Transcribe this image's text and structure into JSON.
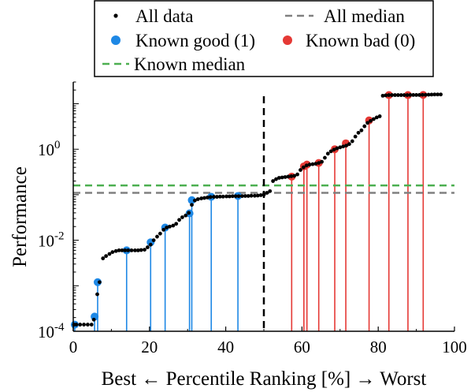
{
  "chart_data": {
    "type": "scatter",
    "xlabel": "Best ← Percentile Ranking [%] → Worst",
    "ylabel": "Performance",
    "xlim": [
      0,
      100
    ],
    "ylim": [
      0.0001,
      30
    ],
    "y_scale": "log",
    "x_ticks": [
      0,
      20,
      40,
      60,
      80,
      100
    ],
    "x_tick_labels": [
      "0",
      "20",
      "40",
      "60",
      "80",
      "100"
    ],
    "y_ticks": [
      0.0001,
      0.01,
      1
    ],
    "y_tick_labels": [
      {
        "base": "10",
        "exp": "-4"
      },
      {
        "base": "10",
        "exp": "-2"
      },
      {
        "base": "10",
        "exp": "0"
      }
    ],
    "grid": false,
    "legend_position": "top",
    "legend": {
      "all_data": "All data",
      "all_median": "All median",
      "known_good": "Known good (1)",
      "known_bad": "Known bad (0)",
      "known_median": "Known median"
    },
    "vertical_line_x": 50,
    "all_median_y": 0.11,
    "known_median_y": 0.16,
    "colors": {
      "all_data": "#000000",
      "known_good": "#1e88e5",
      "known_bad": "#e53935",
      "all_median": "#808080",
      "known_median": "#4caf50",
      "vertical_line": "#000000"
    },
    "all_data": [
      [
        0.2,
        0.00014
      ],
      [
        0.8,
        0.00014
      ],
      [
        1.8,
        0.00014
      ],
      [
        2.8,
        0.00014
      ],
      [
        3.8,
        0.00014
      ],
      [
        4.8,
        0.00014
      ],
      [
        5.4,
        0.00018
      ],
      [
        6.3,
        0.00065
      ],
      [
        6.9,
        0.0012
      ],
      [
        7.8,
        0.004
      ],
      [
        8.6,
        0.0045
      ],
      [
        9.5,
        0.005
      ],
      [
        10.3,
        0.0055
      ],
      [
        11.2,
        0.0058
      ],
      [
        12.0,
        0.006
      ],
      [
        12.8,
        0.006
      ],
      [
        13.6,
        0.006
      ],
      [
        14.4,
        0.006
      ],
      [
        15.3,
        0.006
      ],
      [
        16.2,
        0.006
      ],
      [
        17.0,
        0.006
      ],
      [
        17.8,
        0.0061
      ],
      [
        18.7,
        0.0062
      ],
      [
        19.5,
        0.007
      ],
      [
        20.3,
        0.008
      ],
      [
        21.1,
        0.01
      ],
      [
        22.0,
        0.012
      ],
      [
        22.8,
        0.014
      ],
      [
        23.7,
        0.017
      ],
      [
        24.5,
        0.019
      ],
      [
        25.3,
        0.02
      ],
      [
        26.2,
        0.021
      ],
      [
        27.0,
        0.023
      ],
      [
        27.8,
        0.028
      ],
      [
        28.6,
        0.032
      ],
      [
        29.5,
        0.035
      ],
      [
        30.3,
        0.04
      ],
      [
        31.1,
        0.06
      ],
      [
        31.9,
        0.075
      ],
      [
        32.7,
        0.08
      ],
      [
        33.6,
        0.083
      ],
      [
        34.4,
        0.085
      ],
      [
        35.2,
        0.087
      ],
      [
        36.0,
        0.089
      ],
      [
        36.9,
        0.09
      ],
      [
        37.7,
        0.09
      ],
      [
        38.5,
        0.091
      ],
      [
        39.3,
        0.091
      ],
      [
        40.2,
        0.092
      ],
      [
        41.0,
        0.092
      ],
      [
        41.8,
        0.093
      ],
      [
        42.6,
        0.093
      ],
      [
        43.4,
        0.093
      ],
      [
        44.3,
        0.0935
      ],
      [
        45.1,
        0.094
      ],
      [
        45.9,
        0.094
      ],
      [
        46.7,
        0.095
      ],
      [
        47.6,
        0.095
      ],
      [
        48.4,
        0.096
      ],
      [
        49.2,
        0.098
      ],
      [
        50.0,
        0.1
      ],
      [
        50.8,
        0.11
      ],
      [
        51.6,
        0.12
      ],
      [
        52.4,
        0.2
      ],
      [
        53.2,
        0.22
      ],
      [
        54.0,
        0.235
      ],
      [
        54.8,
        0.24
      ],
      [
        55.6,
        0.245
      ],
      [
        56.4,
        0.25
      ],
      [
        57.2,
        0.255
      ],
      [
        58.0,
        0.26
      ],
      [
        58.8,
        0.28
      ],
      [
        59.6,
        0.35
      ],
      [
        60.4,
        0.4
      ],
      [
        61.2,
        0.44
      ],
      [
        62.0,
        0.46
      ],
      [
        62.8,
        0.47
      ],
      [
        63.6,
        0.48
      ],
      [
        64.4,
        0.5
      ],
      [
        65.2,
        0.53
      ],
      [
        66.0,
        0.65
      ],
      [
        66.8,
        0.8
      ],
      [
        67.6,
        0.9
      ],
      [
        68.4,
        0.98
      ],
      [
        69.2,
        1.05
      ],
      [
        70.0,
        1.1
      ],
      [
        70.8,
        1.15
      ],
      [
        71.6,
        1.2
      ],
      [
        72.4,
        1.3
      ],
      [
        73.2,
        1.5
      ],
      [
        74.0,
        1.9
      ],
      [
        74.8,
        2.3
      ],
      [
        75.6,
        2.6
      ],
      [
        76.4,
        3.2
      ],
      [
        77.2,
        3.8
      ],
      [
        78.0,
        4.2
      ],
      [
        78.8,
        4.6
      ],
      [
        79.6,
        5.0
      ],
      [
        80.4,
        5.3
      ],
      [
        81.2,
        15.0
      ],
      [
        82.0,
        15.3
      ],
      [
        82.8,
        15.5
      ],
      [
        83.6,
        15.5
      ],
      [
        84.4,
        15.5
      ],
      [
        85.2,
        15.5
      ],
      [
        86.0,
        15.5
      ],
      [
        86.8,
        15.5
      ],
      [
        87.6,
        15.5
      ],
      [
        88.4,
        15.6
      ],
      [
        89.2,
        15.6
      ],
      [
        90.0,
        15.6
      ],
      [
        90.8,
        15.6
      ],
      [
        91.6,
        15.7
      ],
      [
        92.4,
        15.7
      ],
      [
        93.2,
        15.8
      ],
      [
        94.0,
        15.9
      ],
      [
        94.8,
        16.0
      ],
      [
        95.6,
        16.0
      ],
      [
        96.4,
        16.0
      ]
    ],
    "known_good": [
      [
        0.4,
        0.00014
      ],
      [
        5.6,
        0.00021
      ],
      [
        6.4,
        0.0012
      ],
      [
        14.0,
        0.006
      ],
      [
        20.3,
        0.009
      ],
      [
        24.1,
        0.019
      ],
      [
        30.5,
        0.039
      ],
      [
        31.1,
        0.076
      ],
      [
        36.2,
        0.09
      ],
      [
        43.2,
        0.094
      ]
    ],
    "known_bad": [
      [
        57.3,
        0.25
      ],
      [
        60.5,
        0.42
      ],
      [
        61.3,
        0.46
      ],
      [
        64.4,
        0.5
      ],
      [
        68.6,
        1.0
      ],
      [
        71.5,
        1.35
      ],
      [
        77.6,
        4.3
      ],
      [
        82.8,
        15.5
      ],
      [
        87.8,
        15.5
      ],
      [
        91.8,
        15.6
      ]
    ]
  }
}
